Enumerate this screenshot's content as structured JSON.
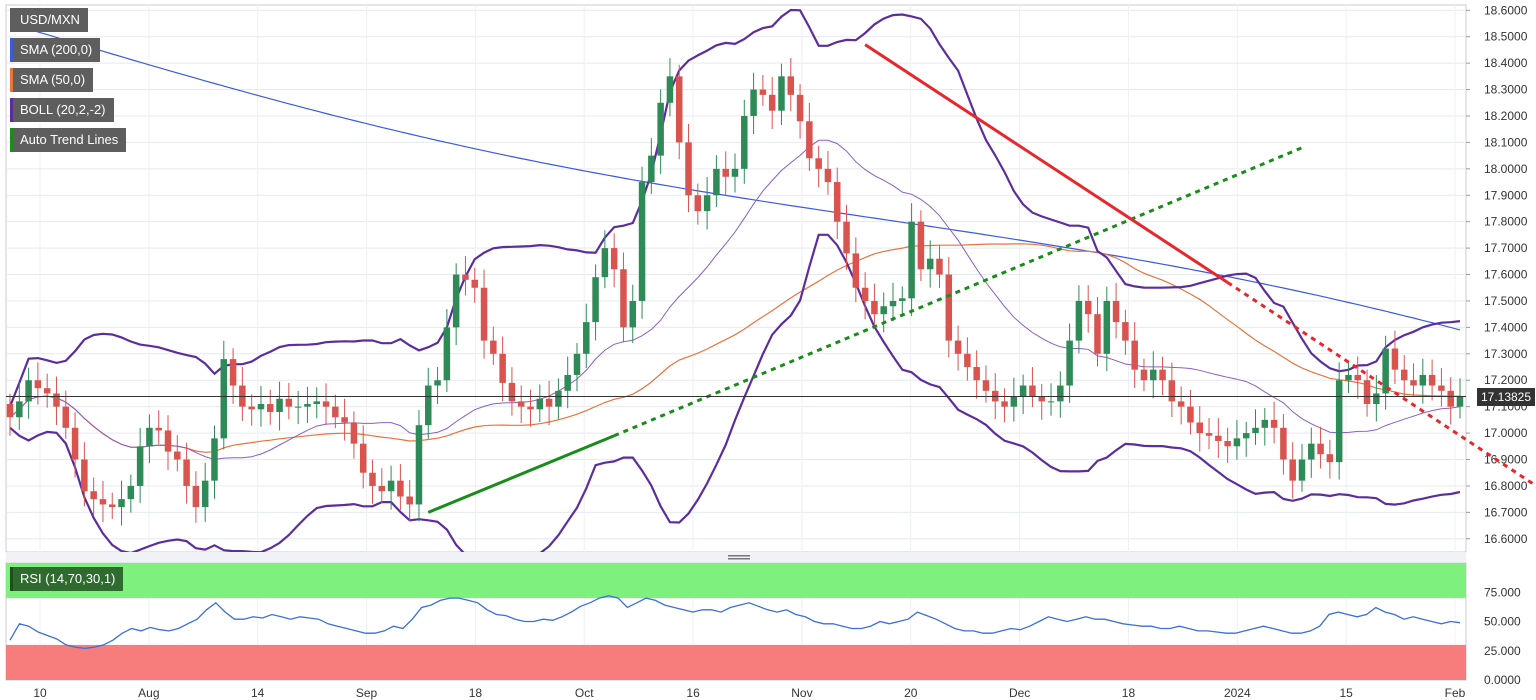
{
  "chart_data": {
    "type": "candlestick",
    "instrument": "USD/MXN",
    "indicators": [
      {
        "label": "USD/MXN",
        "color": "#5e5e5e"
      },
      {
        "label": "SMA (200,0)",
        "color": "#3b5bdb"
      },
      {
        "label": "SMA (50,0)",
        "color": "#e8743b"
      },
      {
        "label": "BOLL (20,2,-2)",
        "color": "#5b2d9e"
      },
      {
        "label": "Auto Trend Lines",
        "color": "#1a8c1a"
      }
    ],
    "last_price": "17.13825",
    "price_axis": {
      "ticks": [
        "18.6000",
        "18.5000",
        "18.4000",
        "18.3000",
        "18.2000",
        "18.1000",
        "18.0000",
        "17.9000",
        "17.8000",
        "17.7000",
        "17.6000",
        "17.5000",
        "17.4000",
        "17.3000",
        "17.2000",
        "17.1000",
        "17.0000",
        "16.9000",
        "16.8000",
        "16.7000",
        "16.6000"
      ],
      "range": [
        16.55,
        18.62
      ]
    },
    "time_axis": {
      "labels": [
        "10",
        "Aug",
        "14",
        "Sep",
        "18",
        "Oct",
        "16",
        "Nov",
        "20",
        "Dec",
        "18",
        "2024",
        "15",
        "Feb"
      ]
    },
    "closes": [
      17.06,
      17.12,
      17.2,
      17.17,
      17.15,
      17.1,
      17.02,
      16.9,
      16.78,
      16.75,
      16.73,
      16.72,
      16.75,
      16.8,
      16.95,
      17.02,
      17.01,
      16.93,
      16.9,
      16.8,
      16.72,
      16.82,
      16.98,
      17.28,
      17.18,
      17.1,
      17.09,
      17.11,
      17.08,
      17.13,
      17.1,
      17.1,
      17.11,
      17.12,
      17.1,
      17.06,
      17.04,
      16.96,
      16.85,
      16.8,
      16.78,
      16.82,
      16.76,
      16.73,
      17.03,
      17.18,
      17.2,
      17.4,
      17.6,
      17.58,
      17.55,
      17.35,
      17.3,
      17.19,
      17.12,
      17.1,
      17.09,
      17.13,
      17.1,
      17.16,
      17.22,
      17.3,
      17.42,
      17.59,
      17.7,
      17.62,
      17.4,
      17.5,
      17.95,
      18.05,
      18.25,
      18.35,
      18.1,
      17.9,
      17.84,
      17.9,
      18.0,
      17.97,
      18.0,
      18.2,
      18.3,
      18.28,
      18.22,
      18.35,
      18.28,
      18.18,
      18.04,
      18.0,
      17.95,
      17.8,
      17.68,
      17.55,
      17.5,
      17.45,
      17.48,
      17.5,
      17.51,
      17.8,
      17.62,
      17.66,
      17.6,
      17.35,
      17.3,
      17.25,
      17.2,
      17.16,
      17.12,
      17.1,
      17.14,
      17.18,
      17.14,
      17.12,
      17.12,
      17.18,
      17.35,
      17.5,
      17.45,
      17.3,
      17.5,
      17.42,
      17.35,
      17.24,
      17.2,
      17.24,
      17.2,
      17.12,
      17.1,
      17.04,
      17.0,
      16.99,
      16.97,
      16.95,
      16.98,
      17.0,
      17.02,
      17.05,
      17.02,
      16.9,
      16.82,
      16.9,
      16.96,
      16.92,
      16.89,
      17.2,
      17.22,
      17.2,
      17.11,
      17.15,
      17.32,
      17.24,
      17.2,
      17.18,
      17.22,
      17.18,
      17.16,
      17.1,
      17.138
    ],
    "rsi": {
      "label": "RSI (14,70,30,1)",
      "levels": [
        70,
        30
      ],
      "ticks": [
        "75.000",
        "50.000",
        "25.000",
        "0.0000"
      ],
      "values": [
        34,
        48,
        46,
        41,
        38,
        35,
        30,
        28,
        27,
        28,
        30,
        34,
        40,
        44,
        42,
        45,
        43,
        42,
        44,
        48,
        52,
        60,
        66,
        58,
        52,
        52,
        54,
        53,
        56,
        54,
        52,
        54,
        53,
        52,
        48,
        46,
        44,
        42,
        40,
        40,
        42,
        46,
        44,
        52,
        62,
        64,
        68,
        70,
        70,
        68,
        66,
        60,
        56,
        55,
        52,
        50,
        50,
        52,
        51,
        54,
        58,
        63,
        66,
        70,
        72,
        70,
        62,
        66,
        70,
        68,
        64,
        62,
        60,
        58,
        60,
        60,
        58,
        62,
        64,
        66,
        63,
        60,
        58,
        60,
        56,
        54,
        50,
        48,
        48,
        46,
        44,
        44,
        46,
        50,
        48,
        50,
        52,
        58,
        55,
        52,
        48,
        44,
        42,
        42,
        40,
        40,
        42,
        44,
        43,
        46,
        50,
        54,
        52,
        50,
        52,
        54,
        52,
        52,
        50,
        48,
        47,
        46,
        46,
        44,
        44,
        46,
        44,
        42,
        42,
        41,
        40,
        40,
        42,
        44,
        46,
        44,
        42,
        40,
        40,
        42,
        46,
        56,
        58,
        56,
        54,
        56,
        62,
        58,
        56,
        52,
        54,
        52,
        50,
        48,
        50,
        49
      ]
    },
    "grid": true
  }
}
